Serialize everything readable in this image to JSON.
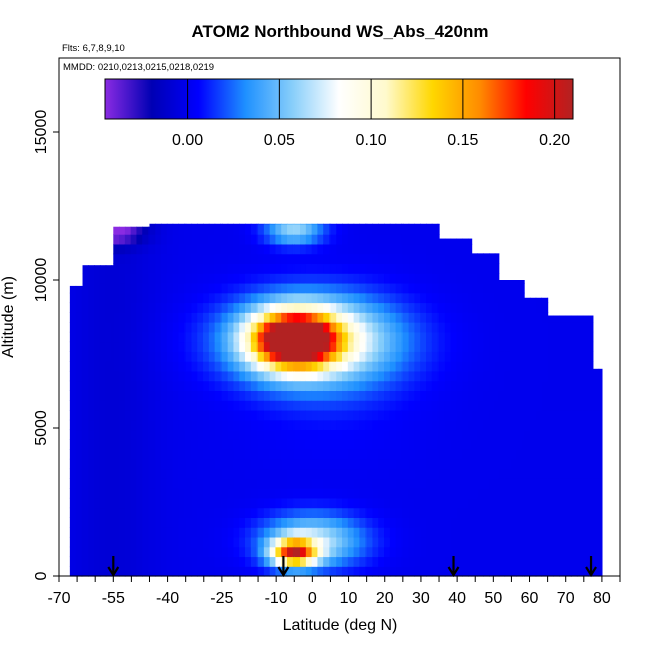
{
  "chart_data": {
    "type": "heatmap",
    "title": "ATOM2 Northbound WS_Abs_420nm",
    "subtitle": "Flts: 6,7,8,9,10",
    "annotation": "MMDD: 0210,0213,0215,0218,0219",
    "xlabel": "Latitude (deg N)",
    "ylabel": "Altitude (m)",
    "xlim": [
      -70,
      85
    ],
    "ylim": [
      0,
      17500
    ],
    "x_ticks": [
      -70,
      -55,
      -40,
      -25,
      -10,
      0,
      10,
      20,
      30,
      40,
      50,
      60,
      70,
      80
    ],
    "x_tick_labels": [
      "-70",
      "-55",
      "-40",
      "-25",
      "-10",
      "0",
      "10",
      "20",
      "30",
      "40",
      "50",
      "60",
      "70",
      "80"
    ],
    "y_ticks": [
      0,
      5000,
      10000,
      15000
    ],
    "y_tick_labels": [
      "0",
      "5000",
      "10000",
      "15000"
    ],
    "colorbar": {
      "range": [
        -0.045,
        0.21
      ],
      "ticks": [
        0.0,
        0.05,
        0.1,
        0.15,
        0.2
      ],
      "tick_labels": [
        "0.00",
        "0.05",
        "0.10",
        "0.15",
        "0.20"
      ],
      "colors": [
        "#8a2be2",
        "#0000b4",
        "#0000ff",
        "#1e90ff",
        "#87cefa",
        "#ffffff",
        "#fffacd",
        "#ffd700",
        "#ff8c00",
        "#ff0000",
        "#b22222"
      ]
    },
    "arrows_latitude": [
      -55,
      -8,
      39,
      77
    ],
    "background_value": 0.0,
    "columns": [
      {
        "lat": -67,
        "ymax": 9800
      },
      {
        "lat": -60,
        "ymax": 10500
      },
      {
        "lat": -50,
        "ymax": 11800
      },
      {
        "lat": -40,
        "ymax": 11900
      },
      {
        "lat": -30,
        "ymax": 11900
      },
      {
        "lat": -20,
        "ymax": 11900
      },
      {
        "lat": -10,
        "ymax": 11900
      },
      {
        "lat": 0,
        "ymax": 11900
      },
      {
        "lat": 10,
        "ymax": 11900
      },
      {
        "lat": 20,
        "ymax": 11900
      },
      {
        "lat": 30,
        "ymax": 11900
      },
      {
        "lat": 40,
        "ymax": 11400
      },
      {
        "lat": 48,
        "ymax": 10900
      },
      {
        "lat": 55,
        "ymax": 10000
      },
      {
        "lat": 62,
        "ymax": 9400
      },
      {
        "lat": 68,
        "ymax": 8800
      },
      {
        "lat": 75,
        "ymax": 8800
      },
      {
        "lat": 80,
        "ymax": 7000
      }
    ],
    "features": [
      {
        "name": "upper-plume",
        "lat": -5,
        "alt": 8000,
        "lat_width": 11,
        "alt_width": 900,
        "peak": 0.21
      },
      {
        "name": "upper-plume-wide",
        "lat": 0,
        "alt": 8000,
        "lat_width": 22,
        "alt_width": 1400,
        "peak": 0.1
      },
      {
        "name": "lower-plume",
        "lat": -5,
        "alt": 800,
        "lat_width": 6,
        "alt_width": 450,
        "peak": 0.16
      },
      {
        "name": "lower-plume-wide",
        "lat": 0,
        "alt": 1200,
        "lat_width": 14,
        "alt_width": 900,
        "peak": 0.07
      },
      {
        "name": "upper-lobe",
        "lat": -5,
        "alt": 11700,
        "lat_width": 8,
        "alt_width": 500,
        "peak": 0.06
      },
      {
        "name": "south-top-low",
        "lat": -55,
        "alt": 11700,
        "lat_width": 8,
        "alt_width": 500,
        "peak": -0.045
      }
    ]
  }
}
